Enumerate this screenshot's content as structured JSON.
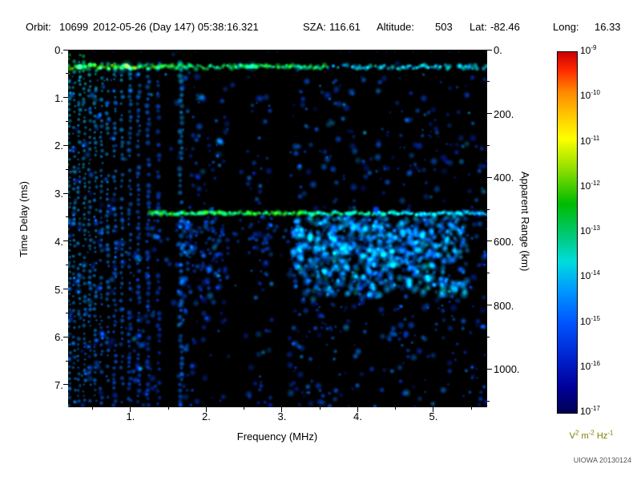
{
  "header": {
    "orbit_label": "Orbit:",
    "orbit_value": "10699",
    "datetime": "2012-05-26 (Day 147) 05:38:16.321",
    "sza_label": "SZA:",
    "sza_value": "116.61",
    "altitude_label": "Altitude:",
    "altitude_value": "503",
    "lat_label": "Lat:",
    "lat_value": "-82.46",
    "long_label": "Long:",
    "long_value": "16.33"
  },
  "axes": {
    "x_title": "Frequency (MHz)",
    "left_title": "Time Delay (ms)",
    "right_title": "Apparent Range (km)",
    "x_tick_labels": [
      "1.",
      "2.",
      "3.",
      "4.",
      "5."
    ],
    "x_tick_values": [
      1,
      2,
      3,
      4,
      5
    ],
    "left_tick_labels": [
      "0.",
      "1.",
      "2.",
      "3.",
      "4.",
      "5.",
      "6.",
      "7."
    ],
    "left_tick_values": [
      0,
      1,
      2,
      3,
      4,
      5,
      6,
      7
    ],
    "right_tick_labels": [
      "0.",
      "200.",
      "400.",
      "600.",
      "800.",
      "1000."
    ],
    "right_tick_values_km": [
      0,
      200,
      400,
      600,
      800,
      1000
    ]
  },
  "colorbar": {
    "base": "10",
    "exponents": [
      "-9",
      "-10",
      "-11",
      "-12",
      "-13",
      "-14",
      "-15",
      "-16",
      "-17"
    ],
    "unit": {
      "b1": "V",
      "e1": "2",
      "b2": " m",
      "e2": "-2",
      "b3": " Hz",
      "e3": "-1"
    },
    "gradient": [
      [
        0,
        "#cc0000"
      ],
      [
        0.05,
        "#ff2a00"
      ],
      [
        0.11,
        "#ff8800"
      ],
      [
        0.18,
        "#ffcc00"
      ],
      [
        0.24,
        "#ffff00"
      ],
      [
        0.33,
        "#88dd00"
      ],
      [
        0.42,
        "#00bb00"
      ],
      [
        0.52,
        "#00cc88"
      ],
      [
        0.58,
        "#00dddd"
      ],
      [
        0.66,
        "#0099ff"
      ],
      [
        0.75,
        "#0055ff"
      ],
      [
        0.85,
        "#0022cc"
      ],
      [
        0.93,
        "#000099"
      ],
      [
        1,
        "#000055"
      ]
    ]
  },
  "footer": {
    "credit": "UIOWA 20130124"
  },
  "colors": {
    "page_bg": "#ffffff",
    "text": "#000000",
    "plot_bg": "#000000",
    "unit_text": "#7d7d00",
    "credit_text": "#555555"
  },
  "chart_data": {
    "type": "heatmap",
    "title": "AIS ionogram spectrogram, Orbit 10699, 2012-05-26 (Day 147) 05:38:16.321",
    "xlabel": "Frequency (MHz)",
    "ylabel": "Time Delay (ms)",
    "y2label": "Apparent Range (km)",
    "xlim": [
      0.175,
      5.71
    ],
    "ylim": [
      0,
      7.47
    ],
    "y2lim_km": [
      0,
      1120
    ],
    "x_ticks": [
      1,
      2,
      3,
      4,
      5
    ],
    "y_ticks": [
      0,
      1,
      2,
      3,
      4,
      5,
      6,
      7
    ],
    "y2_ticks_km": [
      0,
      200,
      400,
      600,
      800,
      1000
    ],
    "colorbar_unit": "V^2 m^-2 Hz^-1",
    "colorbar_exponent_range": [
      -9,
      -17
    ],
    "legend_position": "right colorbar",
    "grid": false,
    "features": [
      {
        "name": "first-return band",
        "time_delay_ms": 0.36,
        "freq_range_mhz": [
          0.18,
          5.7
        ],
        "intensity": "strong green/cyan, yellow flecks near 0.9 MHz, dashed and bluer above 3.6 MHz"
      },
      {
        "name": "electron plasma harmonic stripes",
        "freqs_mhz": [
          0.19,
          0.255,
          0.32,
          0.39,
          0.46,
          0.535,
          0.615,
          0.7,
          0.79,
          0.885,
          0.99,
          1.105,
          1.23,
          1.37,
          1.665
        ],
        "extent": "vertical stripes from the first-return band to the bottom, fading with delay"
      },
      {
        "name": "surface/ionospheric echo band",
        "time_delay_ms": 3.42,
        "apparent_range_km": 513,
        "freq_range_mhz": [
          1.25,
          5.7
        ],
        "intensity": "bright green below 3.3 MHz fading to cyan/blue at higher frequency"
      },
      {
        "name": "diffuse echo cloud",
        "freq_range_mhz": [
          3.15,
          5.45
        ],
        "time_delay_range_ms": [
          3.5,
          5.15
        ]
      },
      {
        "name": "quiet dark columns",
        "freqs_mhz": [
          1.47,
          2.42,
          2.98
        ]
      },
      {
        "name": "dark hole",
        "freq_range_mhz": [
          0.85,
          1.75
        ],
        "time_delay_range_ms": [
          1.2,
          3.25
        ]
      }
    ]
  },
  "ionogram": {
    "seed": 20130124,
    "speckle_count": 3200,
    "stripes": [
      {
        "f": 0.19,
        "s": 1.0,
        "w": 3
      },
      {
        "f": 0.255,
        "s": 0.95,
        "w": 3
      },
      {
        "f": 0.32,
        "s": 0.92,
        "w": 3
      },
      {
        "f": 0.39,
        "s": 0.96,
        "w": 3
      },
      {
        "f": 0.46,
        "s": 0.85,
        "w": 3
      },
      {
        "f": 0.535,
        "s": 0.9,
        "w": 3
      },
      {
        "f": 0.615,
        "s": 0.8,
        "w": 3
      },
      {
        "f": 0.7,
        "s": 0.85,
        "w": 3.5
      },
      {
        "f": 0.79,
        "s": 0.72,
        "w": 3.5
      },
      {
        "f": 0.885,
        "s": 0.78,
        "w": 3.5
      },
      {
        "f": 0.99,
        "s": 0.66,
        "w": 4
      },
      {
        "f": 1.105,
        "s": 0.6,
        "w": 4
      },
      {
        "f": 1.23,
        "s": 0.52,
        "w": 4.5
      },
      {
        "f": 1.37,
        "s": 0.4,
        "w": 4.5
      },
      {
        "f": 1.665,
        "s": 0.8,
        "w": 5
      }
    ],
    "band1": {
      "t": 0.36,
      "f0": 0.175,
      "f1": 5.71,
      "dash_f": 3.6
    },
    "band2": {
      "t": 3.42,
      "f0": 1.25,
      "f1": 5.71,
      "green_until": 3.3
    },
    "dark_columns": [
      {
        "f": 1.47,
        "w": 0.2
      },
      {
        "f": 2.42,
        "w": 0.17
      },
      {
        "f": 2.98,
        "w": 0.15
      }
    ],
    "dark_hole": {
      "f0": 0.85,
      "f1": 1.75,
      "t0": 1.2,
      "t1": 3.25
    },
    "diffuse": {
      "f0": 3.15,
      "f1": 5.45,
      "t0": 3.5,
      "t1": 5.15
    },
    "hotspots": [
      {
        "f": 0.95,
        "t": 0.34,
        "v": 0.88,
        "r": 4.5
      },
      {
        "f": 0.33,
        "t": 0.36,
        "v": 0.75,
        "r": 4
      },
      {
        "f": 2.6,
        "t": 0.35,
        "v": 0.68,
        "r": 4
      }
    ]
  }
}
